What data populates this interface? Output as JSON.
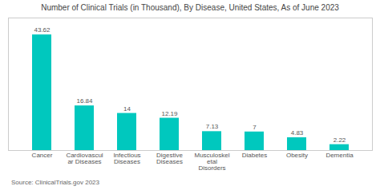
{
  "chart_data": {
    "type": "bar",
    "title": "Number of Clinical Trials (in Thousand), By Disease, United States, As of June 2023",
    "categories": [
      "Cancer",
      "Cardiovascul\nar Diseases",
      "Infectious\nDiseases",
      "Digestive\nDiseases",
      "Musculoskel\netal\nDisorders",
      "Diabetes",
      "Obesity",
      "Dementia"
    ],
    "values": [
      43.62,
      16.84,
      14,
      12.19,
      7.13,
      7,
      4.83,
      2.22
    ],
    "color": "#00C8BE",
    "ylim": [
      0,
      50
    ],
    "data_labels": true,
    "tick_labels": "x",
    "grid": false,
    "annotations": [
      "Source:  ClinicalTrials.gov 2023"
    ]
  }
}
